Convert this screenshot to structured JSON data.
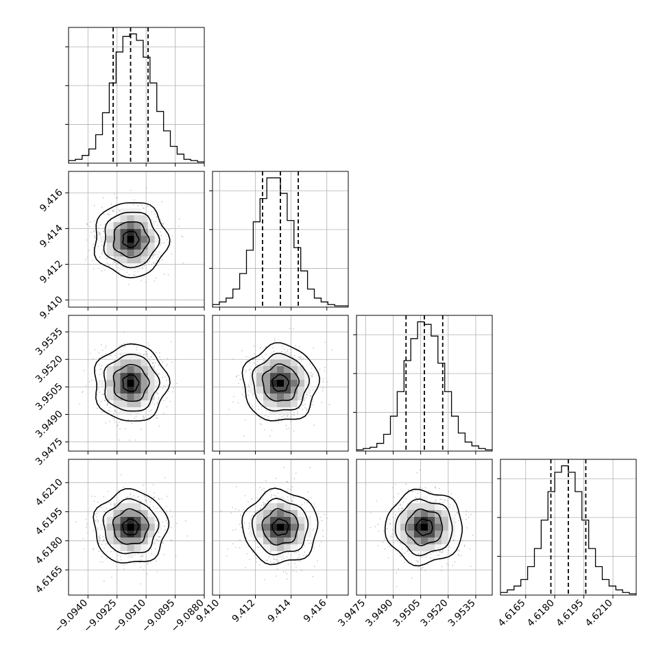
{
  "chart_data": {
    "type": "corner",
    "description_visible": "corner plot with 1D histograms on the diagonal and 2D density/contour panels below",
    "grid": true,
    "histogram_color": "#000000",
    "density_color": "#000000",
    "parameters": [
      {
        "mean": -9.0918,
        "sigma": 0.0009,
        "quantiles": [
          -9.0927,
          -9.0918,
          -9.0909
        ],
        "range": [
          -9.095,
          -9.088
        ],
        "tick_values": [
          -9.094,
          -9.0925,
          -9.091,
          -9.0895,
          -9.088
        ],
        "tick_labels": [
          "−9.0940",
          "−9.0925",
          "−9.0910",
          "−9.0895",
          "−9.0880"
        ],
        "bin_counts": [
          2,
          3,
          6,
          11,
          22,
          39,
          62,
          86,
          98,
          100,
          95,
          82,
          62,
          40,
          25,
          13,
          7,
          3,
          2,
          1
        ]
      },
      {
        "mean": 9.4134,
        "sigma": 0.001,
        "quantiles": [
          9.4124,
          9.4134,
          9.4144
        ],
        "range": [
          9.4096,
          9.4172
        ],
        "tick_values": [
          9.41,
          9.412,
          9.414,
          9.416
        ],
        "tick_labels": [
          "9.410",
          "9.412",
          "9.414",
          "9.416"
        ],
        "bin_counts": [
          2,
          4,
          7,
          14,
          26,
          44,
          66,
          84,
          100,
          100,
          88,
          67,
          46,
          28,
          14,
          7,
          4,
          2,
          1,
          1
        ]
      },
      {
        "mean": 3.9507,
        "sigma": 0.001,
        "quantiles": [
          3.9497,
          3.9507,
          3.9517
        ],
        "range": [
          3.947,
          3.9544
        ],
        "tick_values": [
          3.9475,
          3.949,
          3.9505,
          3.952,
          3.9535
        ],
        "tick_labels": [
          "3.9475",
          "3.9490",
          "3.9505",
          "3.9520",
          "3.9535"
        ],
        "bin_counts": [
          1,
          2,
          3,
          6,
          13,
          27,
          46,
          70,
          87,
          100,
          98,
          89,
          68,
          46,
          27,
          14,
          7,
          4,
          2,
          1
        ]
      },
      {
        "mean": 4.6187,
        "sigma": 0.0009,
        "quantiles": [
          4.6178,
          4.6187,
          4.6196
        ],
        "range": [
          4.6152,
          4.6222
        ],
        "tick_values": [
          4.6165,
          4.618,
          4.6195,
          4.621
        ],
        "tick_labels": [
          "4.6165",
          "4.6180",
          "4.6195",
          "4.6210"
        ],
        "bin_counts": [
          2,
          4,
          7,
          12,
          22,
          36,
          58,
          80,
          95,
          100,
          95,
          80,
          58,
          36,
          22,
          12,
          7,
          4,
          2,
          1
        ]
      }
    ]
  }
}
